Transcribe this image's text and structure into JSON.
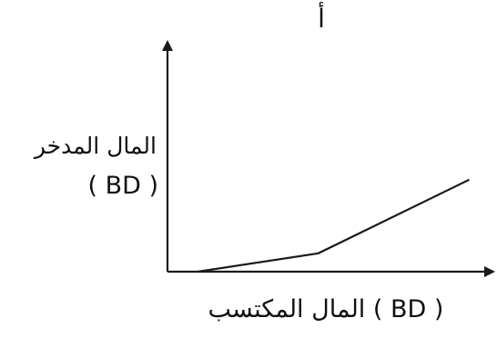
{
  "chart_data": {
    "type": "line",
    "title": "أ",
    "ylabel": "المال المدخر",
    "ylabel_unit": "( BD )",
    "xlabel": "المال المكتسب ( BD )",
    "x": [
      0.1,
      0.5,
      1.0
    ],
    "values": [
      0,
      0.1,
      0.5
    ],
    "xlim": [
      0,
      1.05
    ],
    "ylim": [
      0,
      1.25
    ],
    "grid": false,
    "legend": "none",
    "axis_ticks": false
  },
  "colors": {
    "line": "#1a1a1a",
    "axes": "#1a1a1a",
    "text": "#111111"
  }
}
